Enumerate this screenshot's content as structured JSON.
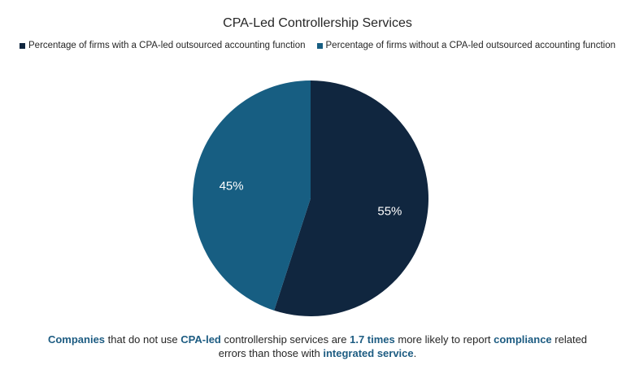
{
  "chart_data": {
    "type": "pie",
    "title": "CPA-Led Controllership Services",
    "legend_position": "top",
    "slices": [
      {
        "name": "Percentage of firms with a CPA-led outsourced accounting function",
        "value": 55,
        "label": "55%",
        "color": "#10263f"
      },
      {
        "name": "Percentage of firms without a CPA-led outsourced accounting function",
        "value": 45,
        "label": "45%",
        "color": "#175e82"
      }
    ]
  },
  "footnote": {
    "p1": "Companies",
    "p2": " that do not use ",
    "p3": "CPA-led",
    "p4": " controllership services are ",
    "p5": "1.7 times",
    "p6": " more likely to report ",
    "p7": "compliance",
    "p8": " related",
    "p9": "errors than those with ",
    "p10": "integrated service",
    "p11": "."
  }
}
